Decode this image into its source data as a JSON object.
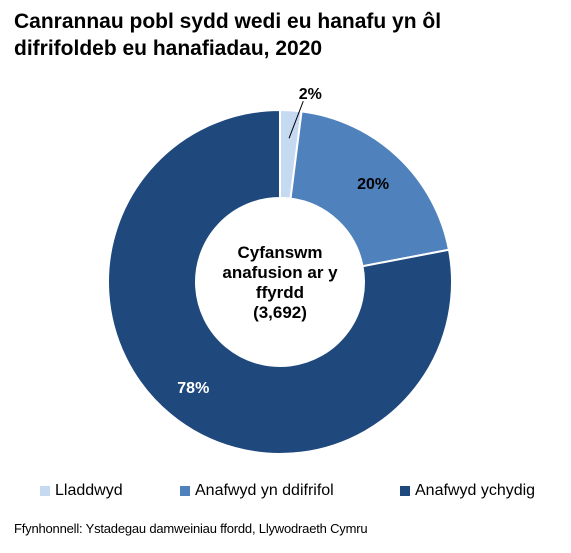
{
  "title_lines": [
    "Canrannau pobl sydd wedi eu hanafu yn ôl",
    "difrifoldeb eu hanafiadau, 2020"
  ],
  "center_label_lines": [
    "Cyfanswm",
    "anafusion ar y",
    "ffyrdd",
    "(3,692)"
  ],
  "source": "Ffynhonnell: Ystadegau damweiniau ffordd, Llywodraeth Cymru",
  "chart_data": {
    "type": "pie",
    "subtype": "donut",
    "title": "Canrannau pobl sydd wedi eu hanafu yn ôl difrifoldeb eu hanafiadau, 2020",
    "unit": "%",
    "categories": [
      "Lladdwyd",
      "Anafwyd yn ddifrifol",
      "Anafwyd ychydig"
    ],
    "values": [
      2,
      20,
      78
    ],
    "data_labels": [
      "2%",
      "20%",
      "78%"
    ],
    "colors": [
      "#c5d9f1",
      "#4f81bd",
      "#1f497d"
    ],
    "label_colors": [
      "#000000",
      "#000000",
      "#ffffff"
    ],
    "legend_position": "bottom"
  }
}
